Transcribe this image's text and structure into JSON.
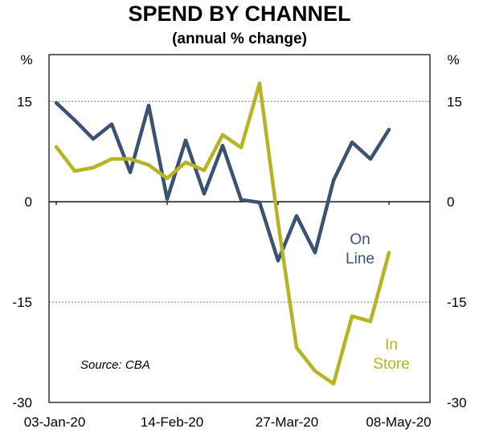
{
  "chart_data": {
    "type": "line",
    "title": "SPEND BY CHANNEL",
    "subtitle": "(annual % change)",
    "ylabel_left": "%",
    "ylabel_right": "%",
    "ylim": [
      -30,
      22
    ],
    "yticks": [
      15,
      0,
      -15,
      -30
    ],
    "x_tick_labels": [
      "03-Jan-20",
      "14-Feb-20",
      "27-Mar-20",
      "08-May-20"
    ],
    "x_tick_positions": [
      0,
      6,
      12,
      18
    ],
    "source": "Source: CBA",
    "grid": "dotted horizontal at 15 and -15",
    "series": [
      {
        "name": "On Line",
        "label_lines": [
          "On",
          "Line"
        ],
        "color": "#3b5273",
        "values": [
          14.8,
          12.2,
          9.4,
          11.6,
          4.4,
          14.4,
          0.4,
          9.2,
          1.2,
          8.4,
          0.3,
          -0.1,
          -8.8,
          -2.1,
          -7.6,
          3.2,
          8.9,
          6.4,
          10.8
        ]
      },
      {
        "name": "In Store",
        "label_lines": [
          "In",
          "Store"
        ],
        "color": "#b6b425",
        "values": [
          8.2,
          4.6,
          5.1,
          6.4,
          6.4,
          5.5,
          3.5,
          5.9,
          4.7,
          10.0,
          8.1,
          17.7,
          -3.1,
          -21.8,
          -25.3,
          -27.2,
          -17.1,
          -17.9,
          -7.6
        ]
      }
    ]
  }
}
